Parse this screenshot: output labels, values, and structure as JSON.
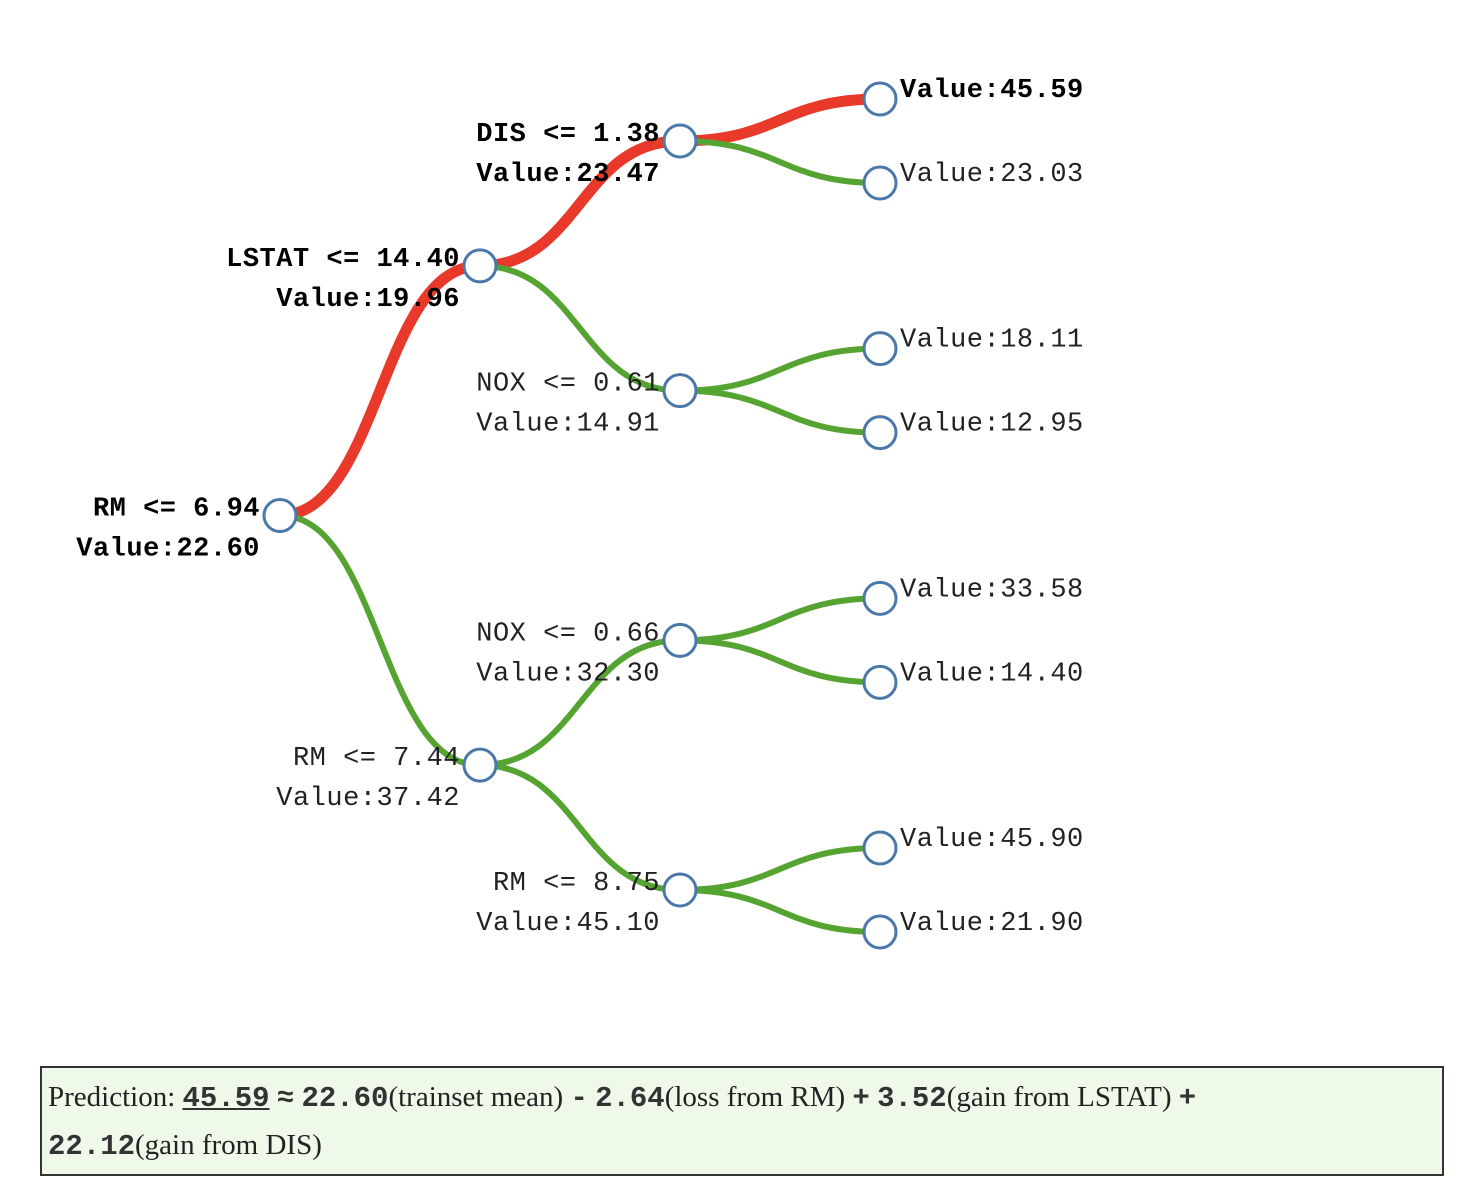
{
  "colors": {
    "active_edge": "#e8392a",
    "inactive_edge": "#55a431",
    "node_stroke": "#4a78a8",
    "box_background": "#eef9ea"
  },
  "tree": {
    "root": {
      "split": "RM <= 6.94",
      "value": "Value:22.60",
      "active": true,
      "left": {
        "split": "LSTAT <= 14.40",
        "value": "Value:19.96",
        "active": true,
        "left": {
          "split": "DIS <= 1.38",
          "value": "Value:23.47",
          "active": true,
          "left": {
            "value": "Value:45.59",
            "active": true
          },
          "right": {
            "value": "Value:23.03",
            "active": false
          }
        },
        "right": {
          "split": "NOX <= 0.61",
          "value": "Value:14.91",
          "active": false,
          "left": {
            "value": "Value:18.11",
            "active": false
          },
          "right": {
            "value": "Value:12.95",
            "active": false
          }
        }
      },
      "right": {
        "split": "RM <= 7.44",
        "value": "Value:37.42",
        "active": false,
        "left": {
          "split": "NOX <= 0.66",
          "value": "Value:32.30",
          "active": false,
          "left": {
            "value": "Value:33.58",
            "active": false
          },
          "right": {
            "value": "Value:14.40",
            "active": false
          }
        },
        "right": {
          "split": "RM <= 8.75",
          "value": "Value:45.10",
          "active": false,
          "left": {
            "value": "Value:45.90",
            "active": false
          },
          "right": {
            "value": "Value:21.90",
            "active": false
          }
        }
      }
    }
  },
  "prediction": {
    "label": "Prediction:",
    "value": "45.59",
    "approx": "≈",
    "mean": "22.60",
    "mean_text": "(trainset mean)",
    "terms": [
      {
        "op": "-",
        "amount": "2.64",
        "text": "(loss from RM)"
      },
      {
        "op": "+",
        "amount": "3.52",
        "text": "(gain from LSTAT)"
      },
      {
        "op": "+",
        "amount": "22.12",
        "text": "(gain from DIS)"
      }
    ]
  }
}
